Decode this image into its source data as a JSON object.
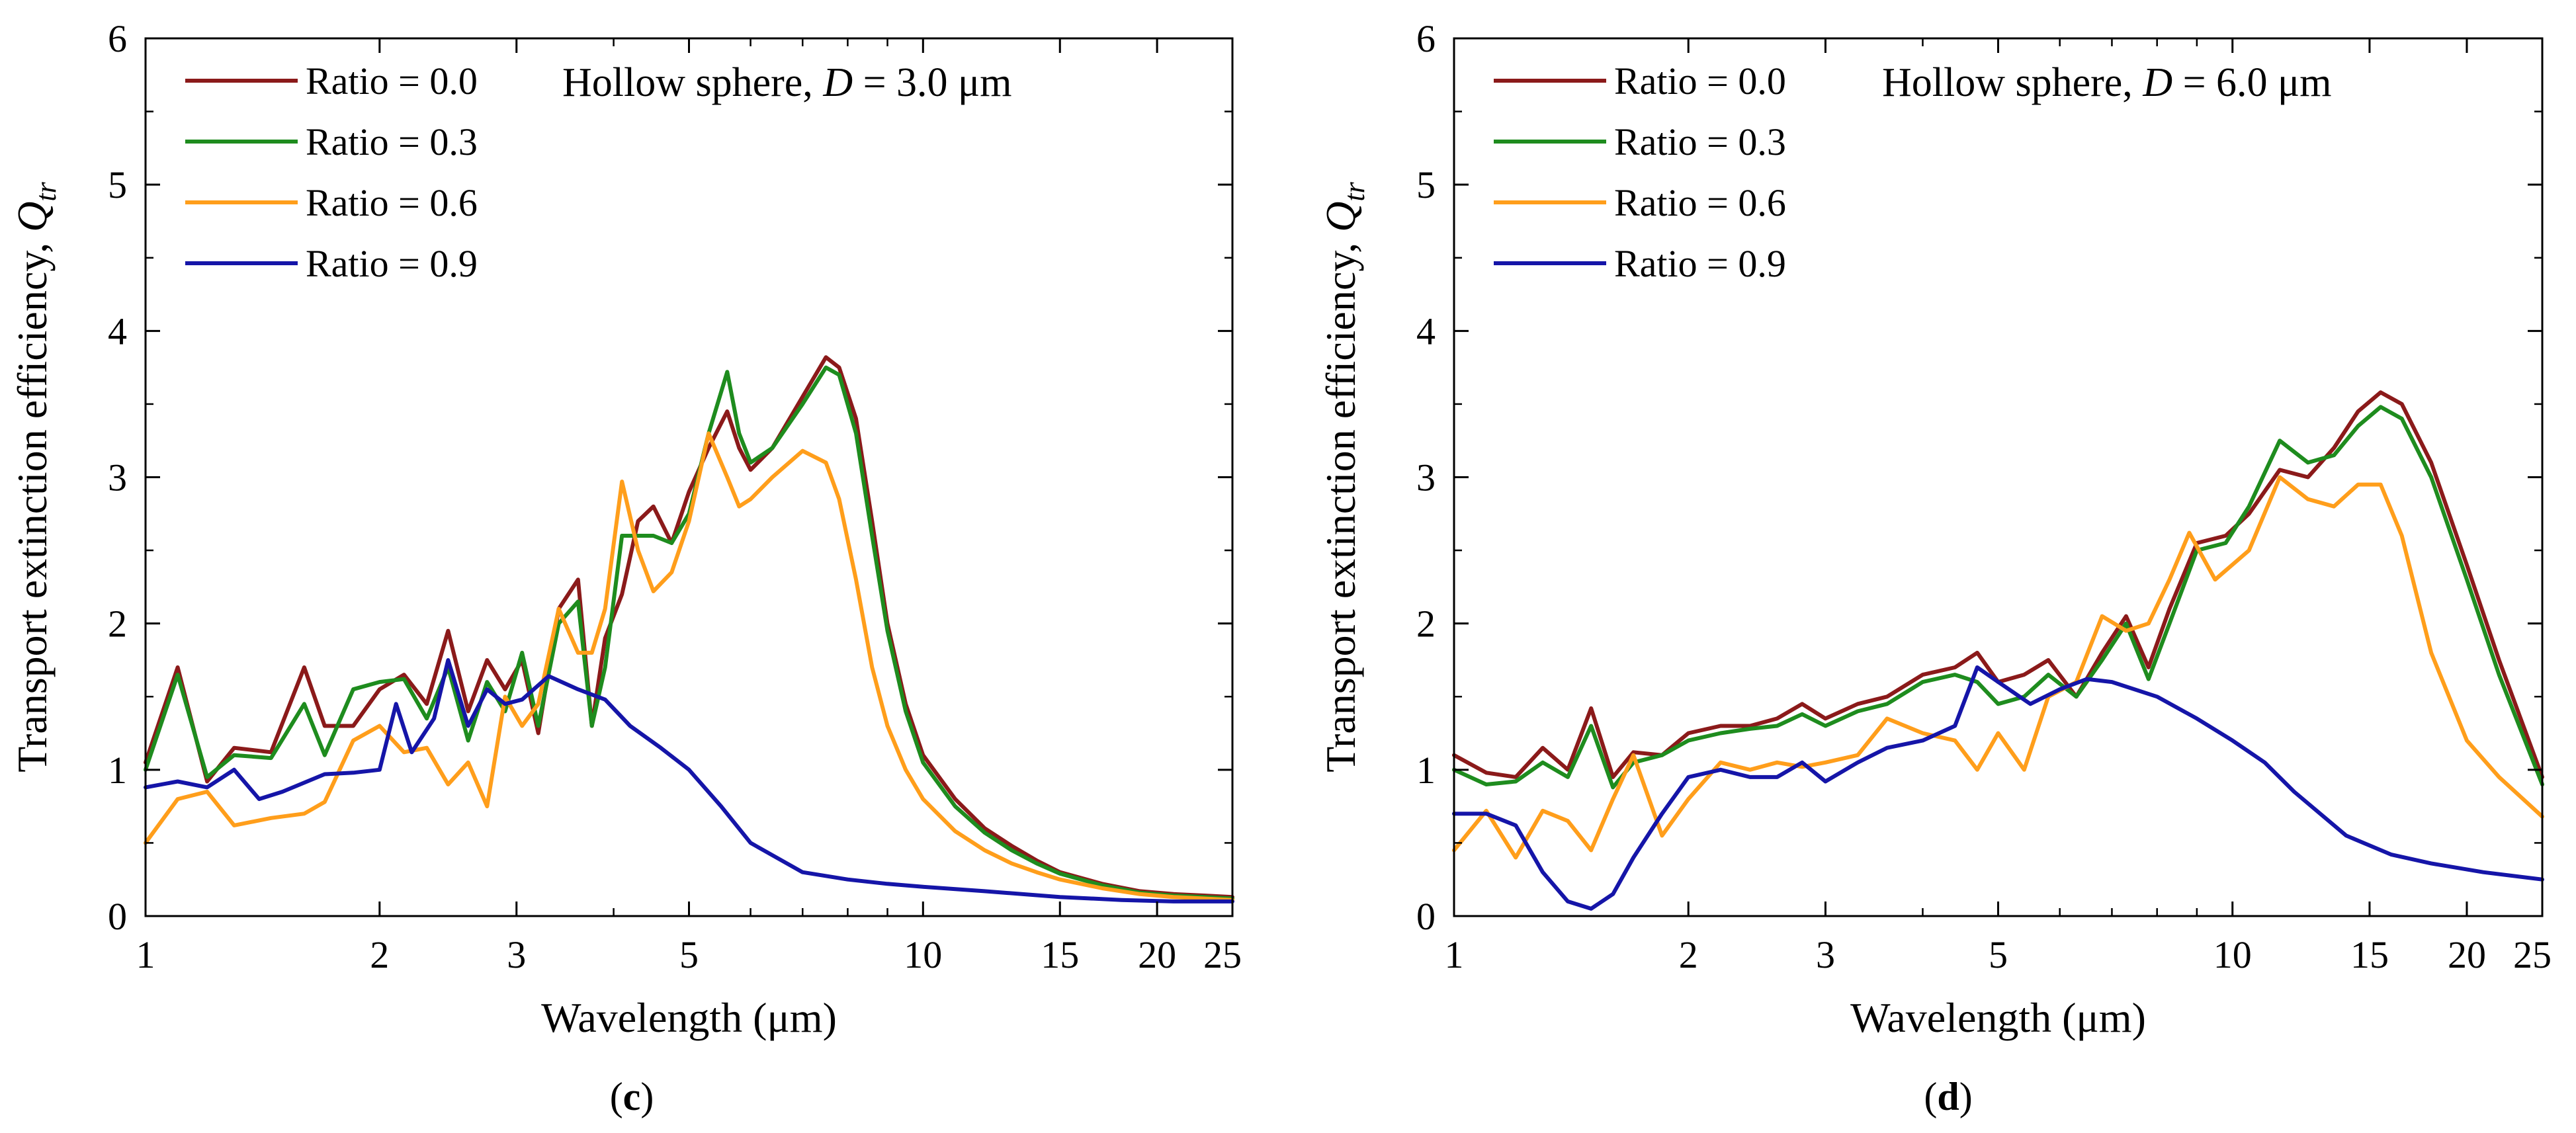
{
  "chart_data": [
    {
      "panel": "c",
      "type": "line",
      "annotation": {
        "prefix": "Hollow sphere, ",
        "var": "D",
        "suffix": " = 3.0 μm"
      },
      "xlabel": "Wavelength (μm)",
      "ylabel": "Transport extinction efficiency, ",
      "ylabel_symbol": "Q",
      "ylabel_sub": "tr",
      "xscale": "log",
      "xlim": [
        1,
        25
      ],
      "ylim": [
        0,
        6
      ],
      "xticks": [
        1,
        2,
        3,
        5,
        10,
        15,
        20,
        25
      ],
      "xtick_labels": [
        "1",
        "2",
        "3",
        "5",
        "10",
        "15",
        "20",
        "25"
      ],
      "yticks": [
        0,
        1,
        2,
        3,
        4,
        5,
        6
      ],
      "ytick_labels": [
        "0",
        "1",
        "2",
        "3",
        "4",
        "5",
        "6"
      ],
      "legend_position": "top-left",
      "series": [
        {
          "name": "Ratio = 0.0",
          "color": "#8B1A1A",
          "x": [
            1,
            1.1,
            1.2,
            1.3,
            1.45,
            1.6,
            1.7,
            1.85,
            2.0,
            2.15,
            2.3,
            2.45,
            2.6,
            2.75,
            2.9,
            3.05,
            3.2,
            3.4,
            3.6,
            3.75,
            3.9,
            4.1,
            4.3,
            4.5,
            4.75,
            5.0,
            5.3,
            5.6,
            5.8,
            6.0,
            6.4,
            7.0,
            7.5,
            7.8,
            8.2,
            8.6,
            9.0,
            9.5,
            10,
            11,
            12,
            13,
            14,
            15,
            17,
            19,
            21,
            23,
            25
          ],
          "y": [
            1.05,
            1.7,
            0.92,
            1.15,
            1.12,
            1.7,
            1.3,
            1.3,
            1.55,
            1.65,
            1.45,
            1.95,
            1.4,
            1.75,
            1.55,
            1.75,
            1.25,
            2.1,
            2.3,
            1.3,
            1.9,
            2.2,
            2.7,
            2.8,
            2.55,
            2.9,
            3.2,
            3.45,
            3.2,
            3.05,
            3.2,
            3.55,
            3.82,
            3.75,
            3.4,
            2.7,
            2.0,
            1.45,
            1.1,
            0.8,
            0.6,
            0.48,
            0.38,
            0.3,
            0.22,
            0.17,
            0.15,
            0.14,
            0.13
          ]
        },
        {
          "name": "Ratio = 0.3",
          "color": "#1E8C1E",
          "x": [
            1,
            1.1,
            1.2,
            1.3,
            1.45,
            1.6,
            1.7,
            1.85,
            2.0,
            2.15,
            2.3,
            2.45,
            2.6,
            2.75,
            2.9,
            3.05,
            3.2,
            3.4,
            3.6,
            3.75,
            3.9,
            4.1,
            4.3,
            4.5,
            4.75,
            5.0,
            5.3,
            5.6,
            5.8,
            6.0,
            6.4,
            7.0,
            7.5,
            7.8,
            8.2,
            8.6,
            9.0,
            9.5,
            10,
            11,
            12,
            13,
            14,
            15,
            17,
            19,
            21,
            23,
            25
          ],
          "y": [
            1.0,
            1.65,
            0.95,
            1.1,
            1.08,
            1.45,
            1.1,
            1.55,
            1.6,
            1.62,
            1.35,
            1.7,
            1.2,
            1.6,
            1.4,
            1.8,
            1.3,
            2.0,
            2.15,
            1.3,
            1.7,
            2.6,
            2.6,
            2.6,
            2.55,
            2.75,
            3.3,
            3.72,
            3.3,
            3.1,
            3.2,
            3.5,
            3.75,
            3.7,
            3.3,
            2.6,
            1.95,
            1.4,
            1.05,
            0.75,
            0.57,
            0.45,
            0.36,
            0.29,
            0.21,
            0.16,
            0.14,
            0.13,
            0.12
          ]
        },
        {
          "name": "Ratio = 0.6",
          "color": "#FF9E1B",
          "x": [
            1,
            1.1,
            1.2,
            1.3,
            1.45,
            1.6,
            1.7,
            1.85,
            2.0,
            2.15,
            2.3,
            2.45,
            2.6,
            2.75,
            2.9,
            3.05,
            3.2,
            3.4,
            3.6,
            3.75,
            3.9,
            4.1,
            4.3,
            4.5,
            4.75,
            5.0,
            5.3,
            5.6,
            5.8,
            6.0,
            6.4,
            7.0,
            7.5,
            7.8,
            8.2,
            8.6,
            9.0,
            9.5,
            10,
            11,
            12,
            13,
            14,
            15,
            17,
            19,
            21,
            23,
            25
          ],
          "y": [
            0.5,
            0.8,
            0.85,
            0.62,
            0.67,
            0.7,
            0.78,
            1.2,
            1.3,
            1.12,
            1.15,
            0.9,
            1.05,
            0.75,
            1.5,
            1.3,
            1.45,
            2.1,
            1.8,
            1.8,
            2.1,
            2.97,
            2.5,
            2.22,
            2.35,
            2.7,
            3.3,
            3.0,
            2.8,
            2.85,
            3.0,
            3.18,
            3.1,
            2.85,
            2.3,
            1.7,
            1.3,
            1.0,
            0.8,
            0.58,
            0.45,
            0.36,
            0.3,
            0.25,
            0.19,
            0.15,
            0.13,
            0.12,
            0.11
          ]
        },
        {
          "name": "Ratio = 0.9",
          "color": "#1515A8",
          "x": [
            1,
            1.1,
            1.2,
            1.3,
            1.4,
            1.5,
            1.7,
            1.85,
            2.0,
            2.1,
            2.2,
            2.35,
            2.45,
            2.6,
            2.75,
            2.9,
            3.05,
            3.3,
            3.6,
            3.9,
            4.2,
            4.6,
            5.0,
            5.5,
            6.0,
            7.0,
            8.0,
            9.0,
            10,
            12,
            15,
            18,
            21,
            25
          ],
          "y": [
            0.88,
            0.92,
            0.88,
            1.0,
            0.8,
            0.85,
            0.97,
            0.98,
            1.0,
            1.45,
            1.12,
            1.35,
            1.75,
            1.3,
            1.55,
            1.45,
            1.48,
            1.64,
            1.55,
            1.48,
            1.3,
            1.15,
            1.0,
            0.75,
            0.5,
            0.3,
            0.25,
            0.22,
            0.2,
            0.17,
            0.13,
            0.11,
            0.1,
            0.1
          ]
        }
      ]
    },
    {
      "panel": "d",
      "type": "line",
      "annotation": {
        "prefix": "Hollow sphere, ",
        "var": "D",
        "suffix": " = 6.0 μm"
      },
      "xlabel": "Wavelength (μm)",
      "ylabel": "Transport extinction efficiency, ",
      "ylabel_symbol": "Q",
      "ylabel_sub": "tr",
      "xscale": "log",
      "xlim": [
        1,
        25
      ],
      "ylim": [
        0,
        6
      ],
      "xticks": [
        1,
        2,
        3,
        5,
        10,
        15,
        20,
        25
      ],
      "xtick_labels": [
        "1",
        "2",
        "3",
        "5",
        "10",
        "15",
        "20",
        "25"
      ],
      "yticks": [
        0,
        1,
        2,
        3,
        4,
        5,
        6
      ],
      "ytick_labels": [
        "0",
        "1",
        "2",
        "3",
        "4",
        "5",
        "6"
      ],
      "legend_position": "top-left",
      "series": [
        {
          "name": "Ratio = 0.0",
          "color": "#8B1A1A",
          "x": [
            1,
            1.1,
            1.2,
            1.3,
            1.4,
            1.5,
            1.6,
            1.7,
            1.85,
            2.0,
            2.2,
            2.4,
            2.6,
            2.8,
            3.0,
            3.3,
            3.6,
            4.0,
            4.4,
            4.7,
            5.0,
            5.4,
            5.8,
            6.3,
            6.8,
            7.3,
            7.8,
            8.3,
            9.0,
            9.8,
            10.5,
            11.5,
            12.5,
            13.5,
            14.5,
            15.5,
            16.5,
            18,
            20,
            22,
            25
          ],
          "y": [
            1.1,
            0.98,
            0.95,
            1.15,
            1.0,
            1.42,
            0.95,
            1.12,
            1.1,
            1.25,
            1.3,
            1.3,
            1.35,
            1.45,
            1.35,
            1.45,
            1.5,
            1.65,
            1.7,
            1.8,
            1.6,
            1.65,
            1.75,
            1.5,
            1.8,
            2.05,
            1.7,
            2.1,
            2.55,
            2.6,
            2.75,
            3.05,
            3.0,
            3.2,
            3.45,
            3.58,
            3.5,
            3.1,
            2.4,
            1.75,
            0.95
          ]
        },
        {
          "name": "Ratio = 0.3",
          "color": "#1E8C1E",
          "x": [
            1,
            1.1,
            1.2,
            1.3,
            1.4,
            1.5,
            1.6,
            1.7,
            1.85,
            2.0,
            2.2,
            2.4,
            2.6,
            2.8,
            3.0,
            3.3,
            3.6,
            4.0,
            4.4,
            4.7,
            5.0,
            5.4,
            5.8,
            6.3,
            6.8,
            7.3,
            7.8,
            8.3,
            9.0,
            9.8,
            10.5,
            11.5,
            12.5,
            13.5,
            14.5,
            15.5,
            16.5,
            18,
            20,
            22,
            25
          ],
          "y": [
            1.0,
            0.9,
            0.92,
            1.05,
            0.95,
            1.3,
            0.88,
            1.05,
            1.1,
            1.2,
            1.25,
            1.28,
            1.3,
            1.38,
            1.3,
            1.4,
            1.45,
            1.6,
            1.65,
            1.6,
            1.45,
            1.5,
            1.65,
            1.5,
            1.75,
            2.0,
            1.62,
            2.0,
            2.5,
            2.55,
            2.8,
            3.25,
            3.1,
            3.15,
            3.35,
            3.48,
            3.4,
            3.0,
            2.3,
            1.65,
            0.9
          ]
        },
        {
          "name": "Ratio = 0.6",
          "color": "#FF9E1B",
          "x": [
            1,
            1.1,
            1.2,
            1.3,
            1.4,
            1.5,
            1.6,
            1.7,
            1.85,
            2.0,
            2.2,
            2.4,
            2.6,
            2.8,
            3.0,
            3.3,
            3.6,
            4.0,
            4.4,
            4.7,
            5.0,
            5.4,
            5.8,
            6.3,
            6.8,
            7.3,
            7.8,
            8.3,
            8.8,
            9.5,
            10.5,
            11.5,
            12.5,
            13.5,
            14.5,
            15.5,
            16.5,
            18,
            20,
            22,
            25
          ],
          "y": [
            0.45,
            0.72,
            0.4,
            0.72,
            0.65,
            0.45,
            0.8,
            1.1,
            0.55,
            0.8,
            1.05,
            1.0,
            1.05,
            1.02,
            1.05,
            1.1,
            1.35,
            1.25,
            1.2,
            1.0,
            1.25,
            1.0,
            1.5,
            1.6,
            2.05,
            1.95,
            2.0,
            2.3,
            2.62,
            2.3,
            2.5,
            3.0,
            2.85,
            2.8,
            2.95,
            2.95,
            2.6,
            1.8,
            1.2,
            0.95,
            0.68
          ]
        },
        {
          "name": "Ratio = 0.9",
          "color": "#1515A8",
          "x": [
            1,
            1.1,
            1.2,
            1.3,
            1.4,
            1.5,
            1.6,
            1.7,
            1.85,
            2.0,
            2.2,
            2.4,
            2.6,
            2.8,
            3.0,
            3.3,
            3.6,
            4.0,
            4.4,
            4.7,
            5.0,
            5.5,
            6.0,
            6.5,
            7.0,
            8.0,
            9.0,
            10,
            11,
            12,
            14,
            16,
            18,
            21,
            25
          ],
          "y": [
            0.7,
            0.7,
            0.62,
            0.3,
            0.1,
            0.05,
            0.15,
            0.4,
            0.7,
            0.95,
            1.0,
            0.95,
            0.95,
            1.05,
            0.92,
            1.05,
            1.15,
            1.2,
            1.3,
            1.7,
            1.6,
            1.45,
            1.55,
            1.62,
            1.6,
            1.5,
            1.35,
            1.2,
            1.05,
            0.85,
            0.55,
            0.42,
            0.36,
            0.3,
            0.25
          ]
        }
      ]
    }
  ]
}
